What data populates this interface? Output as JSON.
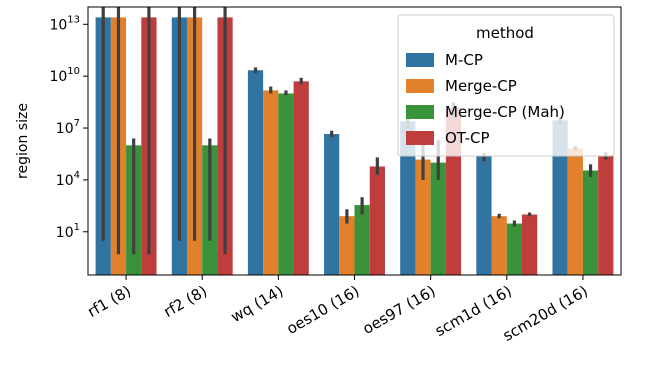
{
  "chart_data": {
    "type": "bar",
    "y_scale": "log",
    "ylabel": "region size",
    "xlabel": "",
    "ylim": [
      0.0316,
      100000000000000.0
    ],
    "y_ticks": [
      {
        "value": 10,
        "label": "10",
        "exp": "1"
      },
      {
        "value": 10000,
        "label": "10",
        "exp": "4"
      },
      {
        "value": 10000000,
        "label": "10",
        "exp": "7"
      },
      {
        "value": 10000000000,
        "label": "10",
        "exp": "10"
      },
      {
        "value": 10000000000000,
        "label": "10",
        "exp": "13"
      }
    ],
    "categories": [
      "rf1 (8)",
      "rf2 (8)",
      "wq (14)",
      "oes10 (16)",
      "oes97 (16)",
      "scm1d (16)",
      "scm20d (16)"
    ],
    "legend": {
      "title": "method",
      "placement": "top-right"
    },
    "series": [
      {
        "name": "M-CP",
        "color": "#3274a1",
        "values": [
          25000000000000.0,
          25000000000000.0,
          22000000000.0,
          4500000.0,
          25000000.0,
          250000.0,
          28000000.0
        ],
        "err_low": [
          3,
          3,
          15000000000.0,
          3000000.0,
          10000000.0,
          120000.0,
          15000000.0
        ],
        "err_high": [
          100000000000000.0,
          100000000000000.0,
          32000000000.0,
          7000000.0,
          40000000.0,
          350000.0,
          40000000.0
        ]
      },
      {
        "name": "Merge-CP",
        "color": "#e1812c",
        "values": [
          25000000000000.0,
          25000000000000.0,
          1500000000.0,
          80,
          150000.0,
          80,
          650000.0
        ],
        "err_low": [
          0.5,
          3,
          1000000000.0,
          30,
          10000.0,
          60,
          500000.0
        ],
        "err_high": [
          100000000000000.0,
          100000000000000.0,
          2500000000.0,
          200,
          2000000.0,
          110,
          900000.0
        ]
      },
      {
        "name": "Merge-CP (Mah)",
        "color": "#3a923a",
        "values": [
          1000000.0,
          1000000.0,
          1000000000.0,
          350,
          100000.0,
          30,
          35000.0
        ],
        "err_low": [
          0.5,
          3,
          800000000.0,
          100,
          10000.0,
          20,
          15000.0
        ],
        "err_high": [
          2500000.0,
          2500000.0,
          1500000000.0,
          1000,
          2000000.0,
          45,
          80000.0
        ]
      },
      {
        "name": "OT-CP",
        "color": "#c03d3e",
        "values": [
          25000000000000.0,
          25000000000000.0,
          5000000000.0,
          60000.0,
          150000000.0,
          100,
          250000.0
        ],
        "err_low": [
          0.5,
          0.5,
          3500000000.0,
          20000.0,
          40000000.0,
          80,
          150000.0
        ],
        "err_high": [
          100000000000000.0,
          100000000000000.0,
          8000000000.0,
          200000.0,
          300000000.0,
          130,
          400000.0
        ]
      }
    ]
  }
}
